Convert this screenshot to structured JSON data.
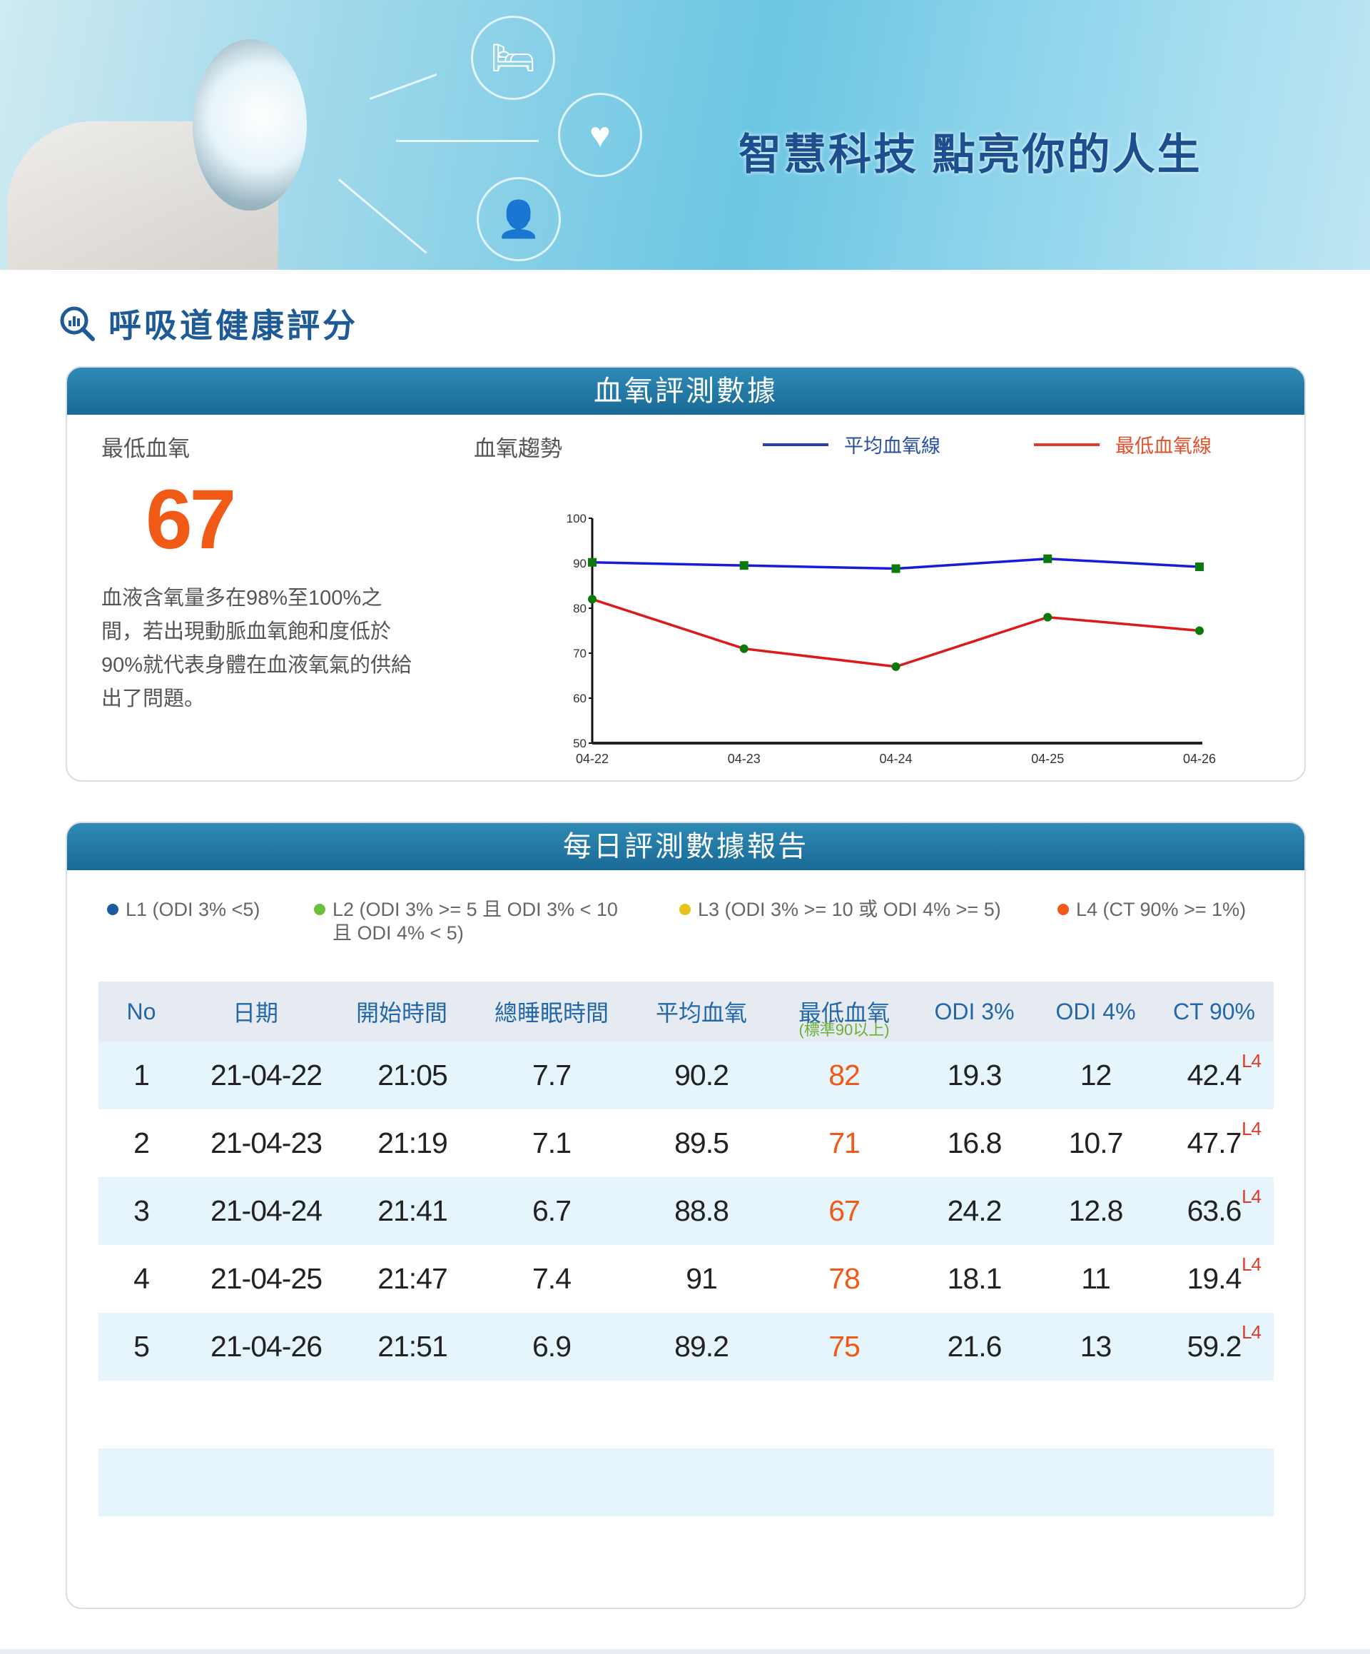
{
  "banner": {
    "title": "智慧科技 點亮你的人生"
  },
  "section_title": "呼吸道健康評分",
  "oxygen_card": {
    "header": "血氧評測數據",
    "min_label": "最低血氧",
    "min_value": "67",
    "description": "血液含氧量多在98%至100%之間，若出現動脈血氧飽和度低於90%就代表身體在血液氧氣的供給出了問題。",
    "trend_label": "血氧趨勢"
  },
  "chart_data": {
    "type": "line",
    "title": "血氧趨勢",
    "categories": [
      "04-22",
      "04-23",
      "04-24",
      "04-25",
      "04-26"
    ],
    "series": [
      {
        "name": "平均血氧線",
        "color": "#1a1adb",
        "values": [
          90.2,
          89.5,
          88.8,
          91,
          89.2
        ]
      },
      {
        "name": "最低血氧線",
        "color": "#dd1a1a",
        "values": [
          82,
          71,
          67,
          78,
          75
        ]
      }
    ],
    "ylim": [
      50,
      100
    ],
    "yticks": [
      50,
      60,
      70,
      80,
      90,
      100
    ],
    "marker_color": "#0a7a0a",
    "legend": "top-right"
  },
  "daily_card": {
    "header": "每日評測數據報告",
    "legend": [
      {
        "label": "L1 (ODI 3% <5)",
        "color": "#1a5a9e"
      },
      {
        "label": "L2 (ODI 3% >= 5 且 ODI 3% < 10",
        "label2": "且 ODI 4% < 5)",
        "color": "#6cbf3a"
      },
      {
        "label": "L3 (ODI 3% >= 10 或 ODI 4% >= 5)",
        "color": "#e8c41a"
      },
      {
        "label": "L4 (CT 90% >= 1%)",
        "color": "#f05a16"
      }
    ],
    "columns": [
      "No",
      "日期",
      "開始時間",
      "總睡眠時間",
      "平均血氧",
      "最低血氧",
      "ODI 3%",
      "ODI 4%",
      "CT 90%"
    ],
    "min_note": "(標準90以上)",
    "rows": [
      {
        "no": "1",
        "date": "21-04-22",
        "start": "21:05",
        "sleep": "7.7",
        "avg": "90.2",
        "min": "82",
        "odi3": "19.3",
        "odi4": "12",
        "ct90": "42.4",
        "level": "L4"
      },
      {
        "no": "2",
        "date": "21-04-23",
        "start": "21:19",
        "sleep": "7.1",
        "avg": "89.5",
        "min": "71",
        "odi3": "16.8",
        "odi4": "10.7",
        "ct90": "47.7",
        "level": "L4"
      },
      {
        "no": "3",
        "date": "21-04-24",
        "start": "21:41",
        "sleep": "6.7",
        "avg": "88.8",
        "min": "67",
        "odi3": "24.2",
        "odi4": "12.8",
        "ct90": "63.6",
        "level": "L4"
      },
      {
        "no": "4",
        "date": "21-04-25",
        "start": "21:47",
        "sleep": "7.4",
        "avg": "91",
        "min": "78",
        "odi3": "18.1",
        "odi4": "11",
        "ct90": "19.4",
        "level": "L4"
      },
      {
        "no": "5",
        "date": "21-04-26",
        "start": "21:51",
        "sleep": "6.9",
        "avg": "89.2",
        "min": "75",
        "odi3": "21.6",
        "odi4": "13",
        "ct90": "59.2",
        "level": "L4"
      }
    ]
  }
}
